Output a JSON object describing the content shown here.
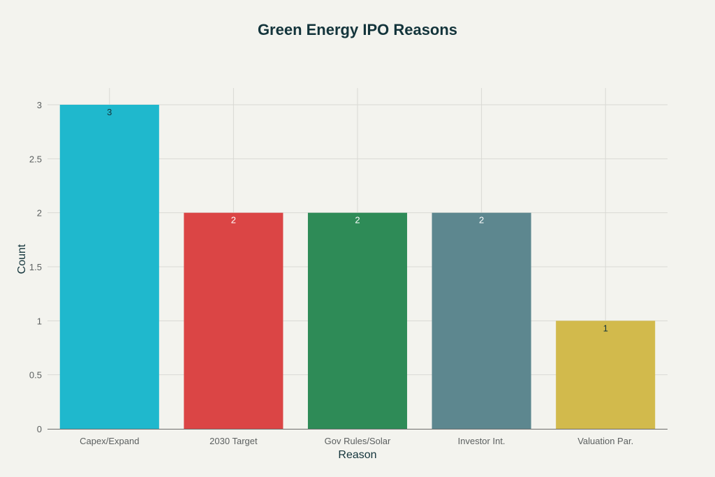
{
  "chart_data": {
    "type": "bar",
    "title": "Green Energy IPO Reasons",
    "xlabel": "Reason",
    "ylabel": "Count",
    "categories": [
      "Capex/Expand",
      "2030 Target",
      "Gov Rules/Solar",
      "Investor Int.",
      "Valuation Par."
    ],
    "values": [
      3,
      2,
      2,
      2,
      1
    ],
    "data_labels": [
      "3",
      "2",
      "2",
      "2",
      "1"
    ],
    "colors": [
      "#1fb8cd",
      "#db4545",
      "#2e8b57",
      "#5d878f",
      "#d2ba4c"
    ],
    "data_label_colors": [
      "#13343b",
      "#ffffff",
      "#ffffff",
      "#ffffff",
      "#13343b"
    ],
    "ylim": [
      0,
      3
    ],
    "yticks": [
      0,
      0.5,
      1,
      1.5,
      2,
      2.5,
      3
    ],
    "ytick_labels": [
      "0",
      "0.5",
      "1",
      "1.5",
      "2",
      "2.5",
      "3"
    ],
    "grid": true,
    "legend": "none"
  }
}
